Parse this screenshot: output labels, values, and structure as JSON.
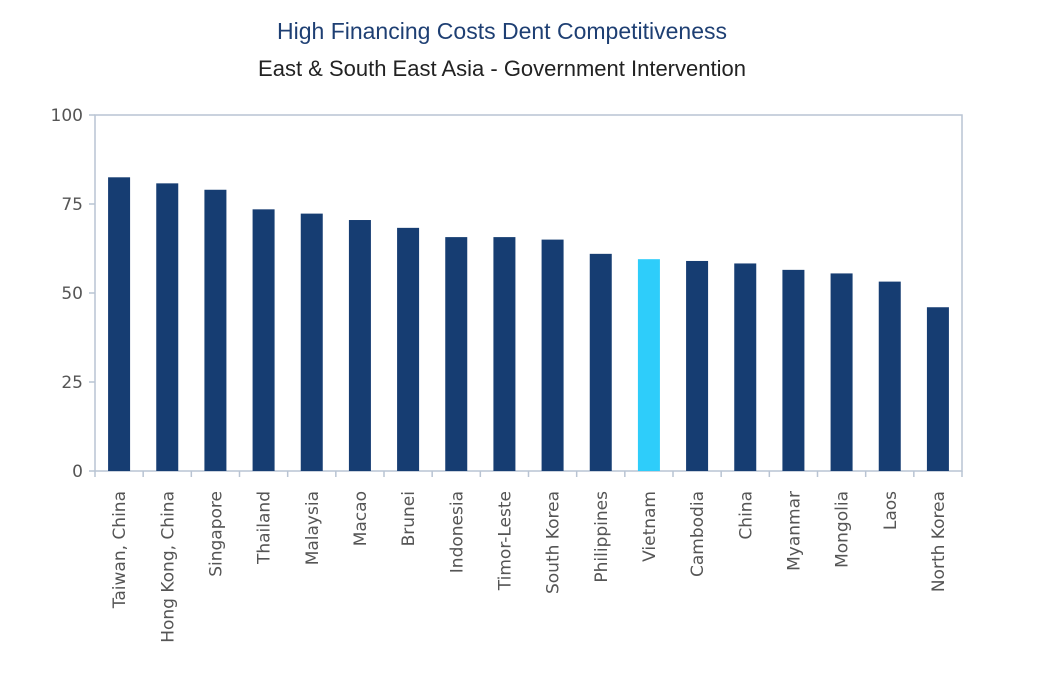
{
  "header": {
    "title": "High Financing Costs Dent Competitiveness",
    "subtitle": "East & South East Asia - Government Intervention"
  },
  "chart_data": {
    "type": "bar",
    "title": "High Financing Costs Dent Competitiveness",
    "subtitle": "East & South East Asia - Government Intervention",
    "xlabel": "",
    "ylabel": "",
    "ylim": [
      0,
      100
    ],
    "yticks": [
      0,
      25,
      50,
      75,
      100
    ],
    "grid": false,
    "legend": "none",
    "categories": [
      "Taiwan, China",
      "Hong Kong, China",
      "Singapore",
      "Thailand",
      "Malaysia",
      "Macao",
      "Brunei",
      "Indonesia",
      "Timor-Leste",
      "South Korea",
      "Philippines",
      "Vietnam",
      "Cambodia",
      "China",
      "Myanmar",
      "Mongolia",
      "Laos",
      "North Korea"
    ],
    "values": [
      82.5,
      80.8,
      79.0,
      73.5,
      72.3,
      70.5,
      68.3,
      65.7,
      65.7,
      65.0,
      61.0,
      59.5,
      59.0,
      58.3,
      56.5,
      55.5,
      53.2,
      46.0
    ],
    "highlight": "Vietnam",
    "colors": {
      "bar": "#163d72",
      "highlight": "#2ecdfa",
      "axis": "#b9c4d3",
      "tick_label": "#555555"
    }
  }
}
